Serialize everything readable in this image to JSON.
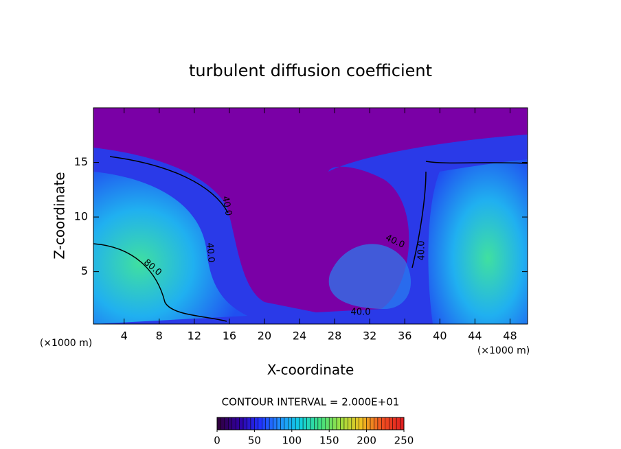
{
  "chart_data": {
    "type": "contour",
    "title": "turbulent diffusion coefficient",
    "x_label": "X-coordinate",
    "y_label": "Z-coordinate",
    "x_unit": "(×1000 m)",
    "y_unit": "(×1000 m)",
    "xlim": [
      0.5,
      50
    ],
    "xticks": [
      4,
      8,
      12,
      16,
      20,
      24,
      28,
      32,
      36,
      40,
      44,
      48
    ],
    "ylim": [
      0.2,
      20
    ],
    "yticks": [
      5,
      10,
      15
    ],
    "contour_labels": [
      "40.0",
      "40.0",
      "80.0",
      "40.0",
      "40.0",
      "40.0"
    ],
    "contour_interval": "CONTOUR INTERVAL = 2.000E+01",
    "clim": [
      0,
      250
    ],
    "cticks": [
      0,
      50,
      100,
      150,
      200,
      250
    ],
    "colormap": [
      "#300040",
      "#3000a0",
      "#2030ff",
      "#2090ff",
      "#10d0e0",
      "#40e080",
      "#a0e040",
      "#f0c020",
      "#f05020",
      "#e02020"
    ]
  }
}
